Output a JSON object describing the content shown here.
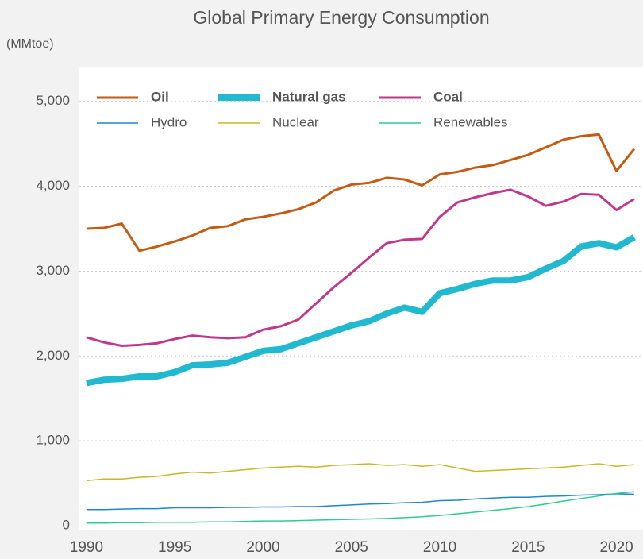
{
  "chart_data": {
    "type": "line",
    "title": "Global Primary Energy Consumption",
    "y_label": "(MMtoe)",
    "x": [
      1990,
      1991,
      1992,
      1993,
      1994,
      1995,
      1996,
      1997,
      1998,
      1999,
      2000,
      2001,
      2002,
      2003,
      2004,
      2005,
      2006,
      2007,
      2008,
      2009,
      2010,
      2011,
      2012,
      2013,
      2014,
      2015,
      2016,
      2017,
      2018,
      2019,
      2020,
      2021
    ],
    "xlim": [
      1989.6,
      2021.5
    ],
    "xticks": [
      1990,
      1995,
      2000,
      2005,
      2010,
      2015,
      2020
    ],
    "ylim": [
      0,
      5400
    ],
    "yticks": [
      0,
      {
        "value": 1000,
        "label": "1,000"
      },
      {
        "value": 2000,
        "label": "2,000"
      },
      {
        "value": 3000,
        "label": "3,000"
      },
      {
        "value": 4000,
        "label": "4,000"
      },
      {
        "value": 5000,
        "label": "5,000"
      }
    ],
    "grid": true,
    "legend": "top-left",
    "series": [
      {
        "name": "Oil",
        "color": "#c55a11",
        "width": 3,
        "values": [
          3500,
          3510,
          3560,
          3240,
          3290,
          3350,
          3420,
          3510,
          3530,
          3610,
          3640,
          3680,
          3730,
          3810,
          3950,
          4020,
          4040,
          4100,
          4080,
          4010,
          4140,
          4170,
          4220,
          4250,
          4310,
          4370,
          4460,
          4550,
          4590,
          4610,
          4180,
          4440
        ]
      },
      {
        "name": "Natural gas",
        "color": "#21b9cf",
        "width": 8,
        "values": [
          1680,
          1720,
          1730,
          1760,
          1760,
          1810,
          1890,
          1900,
          1920,
          1990,
          2060,
          2080,
          2150,
          2220,
          2290,
          2360,
          2410,
          2500,
          2570,
          2520,
          2740,
          2790,
          2850,
          2890,
          2890,
          2930,
          3030,
          3120,
          3290,
          3330,
          3280,
          3400
        ]
      },
      {
        "name": "Coal",
        "color": "#c2378a",
        "width": 3,
        "values": [
          2220,
          2160,
          2120,
          2130,
          2150,
          2200,
          2240,
          2220,
          2210,
          2220,
          2310,
          2350,
          2430,
          2620,
          2810,
          2980,
          3160,
          3330,
          3370,
          3380,
          3640,
          3810,
          3870,
          3920,
          3960,
          3880,
          3770,
          3820,
          3910,
          3900,
          3720,
          3850
        ]
      },
      {
        "name": "Hydro",
        "color": "#1f86d0",
        "width": 1.5,
        "values": [
          190,
          190,
          195,
          200,
          200,
          210,
          210,
          210,
          215,
          215,
          220,
          220,
          225,
          225,
          235,
          245,
          255,
          260,
          270,
          275,
          295,
          300,
          315,
          325,
          335,
          335,
          345,
          350,
          360,
          365,
          375,
          370
        ]
      },
      {
        "name": "Nuclear",
        "color": "#c9b726",
        "width": 1.5,
        "values": [
          530,
          550,
          550,
          570,
          580,
          610,
          630,
          620,
          640,
          660,
          680,
          690,
          700,
          690,
          710,
          720,
          730,
          710,
          720,
          700,
          720,
          680,
          640,
          650,
          660,
          670,
          680,
          690,
          710,
          730,
          700,
          720
        ]
      },
      {
        "name": "Renewables",
        "color": "#2ecc8e",
        "width": 1.5,
        "values": [
          30,
          30,
          35,
          35,
          40,
          40,
          40,
          45,
          45,
          50,
          55,
          55,
          60,
          65,
          70,
          75,
          80,
          85,
          95,
          105,
          120,
          140,
          160,
          180,
          200,
          225,
          255,
          290,
          320,
          350,
          380,
          400
        ]
      }
    ]
  }
}
